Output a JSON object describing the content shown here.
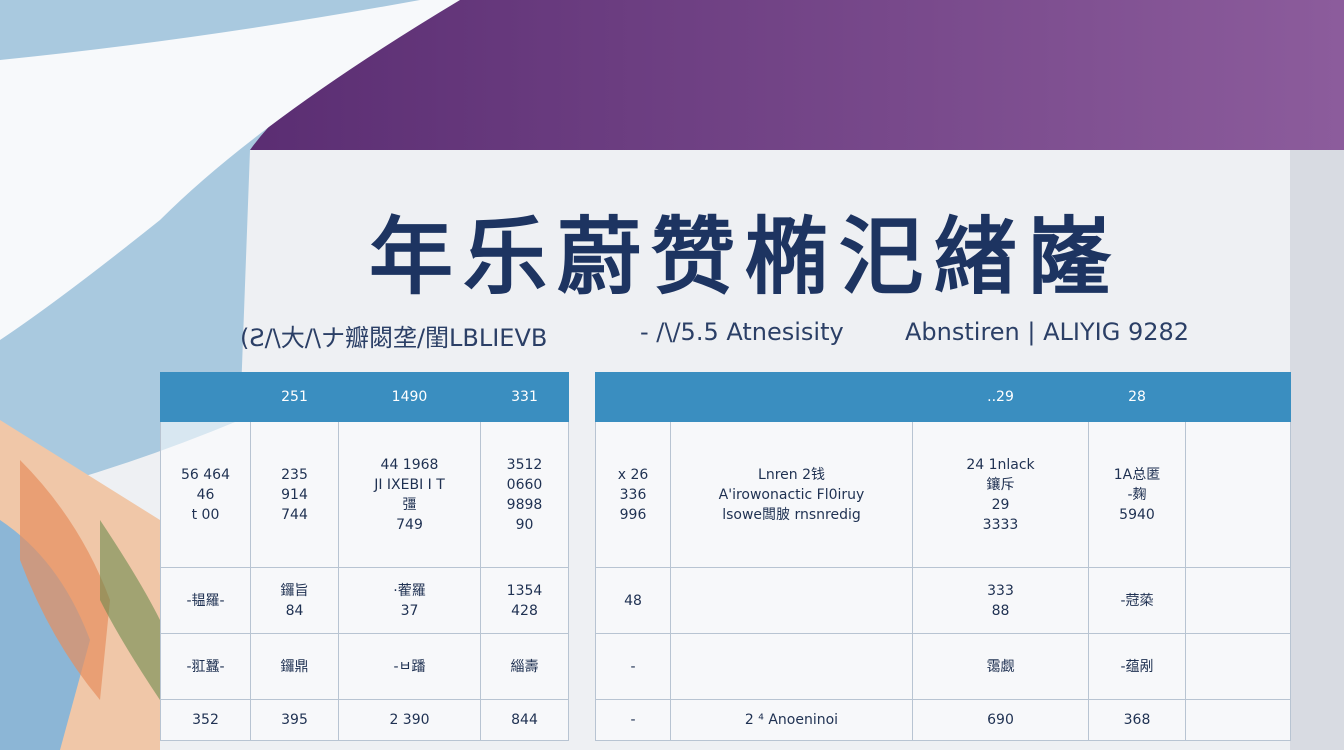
{
  "header": {
    "title": "年乐蔚赞椭汜緖嶐",
    "subtitle": [
      "(Ƨ/\\大/\\ナ瓣閟垄/閨LBLIEVB",
      "- /\\/5.5 Atnesisity",
      "Abnstiren | ALIYIG 9282"
    ]
  },
  "table": {
    "left": {
      "header": [
        null,
        "251",
        "1490",
        "331"
      ],
      "rows": [
        [
          "56 464\n46\nt 00",
          "235\n914\n744",
          "44 1968\nJI IXEBI I T\n彊\n749",
          "3512\n0660\n9898\n90"
        ],
        [
          "-韫羅-",
          "鑼旨\n84",
          "·蒮羅\n37",
          "1354\n428"
        ],
        [
          "-羾蠶-",
          "鑼鼎",
          "-ㅂ蹯",
          "緇壽"
        ],
        [
          "352",
          "395",
          "2  390",
          "844"
        ]
      ]
    },
    "right": {
      "header": [
        null,
        null,
        "..29",
        "28",
        null
      ],
      "rows": [
        [
          "x 26\n336\n996",
          "Lnren 2钱\nA'irowonactic Fl0iruy\nlsowe闆䏢 rnsnredig",
          "24  1nlack\n鑲斥\n29\n3333",
          "1A总匿\n-麹\n5940",
          null
        ],
        [
          "48",
          null,
          "333\n88",
          "-蒄蒅",
          null
        ],
        [
          "-",
          null,
          "霭觑",
          "-蕴剐",
          null
        ],
        [
          "-",
          "2 ⁴ Anoeninoi",
          "690",
          "368",
          null
        ]
      ]
    }
  }
}
